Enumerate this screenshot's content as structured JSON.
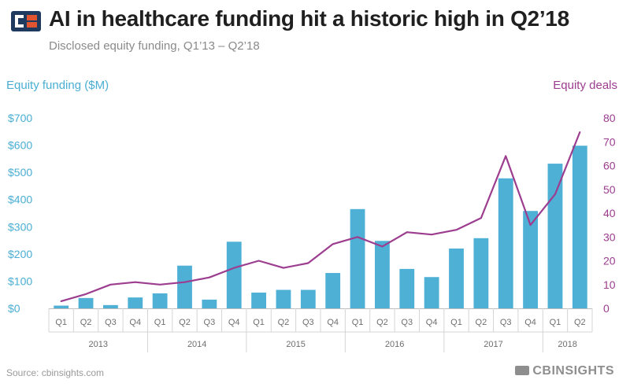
{
  "header": {
    "title": "AI in healthcare funding hit a historic high in Q2’18",
    "subtitle": "Disclosed equity funding, Q1’13 – Q2’18"
  },
  "footer": {
    "source": "Source: cbinsights.com",
    "brand": "CBINSIGHTS"
  },
  "colors": {
    "bar": "#4fb0d6",
    "line": "#9c3d8f",
    "left_axis": "#4aaed4",
    "right_axis": "#9c3d8f"
  },
  "chart_data": {
    "type": "bar",
    "title": "AI in healthcare funding hit a historic high in Q2’18",
    "subtitle": "Disclosed equity funding, Q1’13 – Q2’18",
    "categories": [
      "Q1",
      "Q2",
      "Q3",
      "Q4",
      "Q1",
      "Q2",
      "Q3",
      "Q4",
      "Q1",
      "Q2",
      "Q3",
      "Q4",
      "Q1",
      "Q2",
      "Q3",
      "Q4",
      "Q1",
      "Q2",
      "Q3",
      "Q4",
      "Q1",
      "Q2"
    ],
    "groups": [
      {
        "label": "2013",
        "count": 4
      },
      {
        "label": "2014",
        "count": 4
      },
      {
        "label": "2015",
        "count": 4
      },
      {
        "label": "2016",
        "count": 4
      },
      {
        "label": "2017",
        "count": 4
      },
      {
        "label": "2018",
        "count": 2
      }
    ],
    "series": [
      {
        "name": "Equity funding ($M)",
        "type": "bar",
        "axis": "left",
        "values": [
          10,
          38,
          12,
          40,
          55,
          157,
          32,
          245,
          58,
          68,
          68,
          130,
          365,
          248,
          145,
          115,
          220,
          258,
          478,
          358,
          532,
          598
        ]
      },
      {
        "name": "Equity deals",
        "type": "line",
        "axis": "right",
        "values": [
          3,
          6,
          10,
          11,
          10,
          11,
          13,
          17,
          20,
          17,
          19,
          27,
          30,
          26,
          32,
          31,
          33,
          38,
          64,
          35,
          48,
          74
        ]
      }
    ],
    "left_axis": {
      "label": "Equity funding ($M)",
      "min": 0,
      "max": 700,
      "ticks": [
        "$0",
        "$100",
        "$200",
        "$300",
        "$400",
        "$500",
        "$600",
        "$700"
      ]
    },
    "right_axis": {
      "label": "Equity deals",
      "min": 0,
      "max": 80,
      "ticks": [
        "0",
        "10",
        "20",
        "30",
        "40",
        "50",
        "60",
        "70",
        "80"
      ]
    },
    "grid": false,
    "legend": "none"
  }
}
